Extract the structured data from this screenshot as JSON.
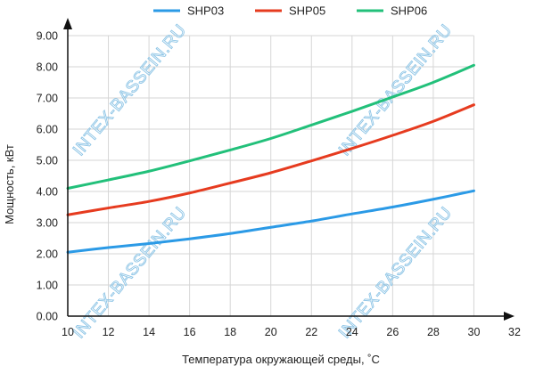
{
  "chart_data": {
    "type": "line",
    "xlabel": "Температура окружающей среды, ˚C",
    "ylabel": "Мощность, кВт",
    "xlim": [
      10,
      32
    ],
    "ylim": [
      0,
      9
    ],
    "x_ticks": [
      "10",
      "12",
      "14",
      "16",
      "18",
      "20",
      "22",
      "24",
      "26",
      "28",
      "30",
      "32"
    ],
    "y_ticks": [
      "0.00",
      "1.00",
      "2.00",
      "3.00",
      "4.00",
      "5.00",
      "6.00",
      "7.00",
      "8.00",
      "9.00"
    ],
    "grid": true,
    "legend_position": "top",
    "x": [
      10,
      12,
      14,
      16,
      18,
      20,
      22,
      24,
      26,
      28,
      30
    ],
    "series": [
      {
        "name": "SHP03",
        "color": "#2b9ae6",
        "values": [
          2.05,
          2.2,
          2.33,
          2.48,
          2.65,
          2.85,
          3.05,
          3.28,
          3.5,
          3.75,
          4.02
        ]
      },
      {
        "name": "SHP05",
        "color": "#e63b1f",
        "values": [
          3.25,
          3.47,
          3.68,
          3.95,
          4.27,
          4.6,
          4.98,
          5.38,
          5.8,
          6.25,
          6.78
        ]
      },
      {
        "name": "SHP06",
        "color": "#22c07a",
        "values": [
          4.1,
          4.37,
          4.65,
          4.98,
          5.33,
          5.7,
          6.13,
          6.57,
          7.03,
          7.5,
          8.05
        ]
      }
    ],
    "watermark": "INTEX-BASSEIN.RU"
  }
}
